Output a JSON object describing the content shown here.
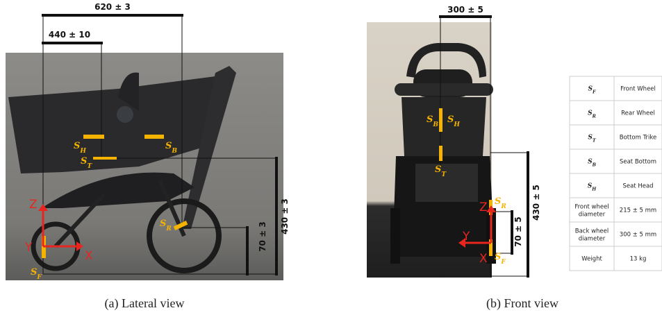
{
  "lateral": {
    "dims": {
      "width_total": "620 ± 3",
      "width_seat": "440 ± 10",
      "height_seat": "430 ± 3",
      "height_axle": "70 ± 3"
    },
    "sensors": {
      "head": {
        "main": "S",
        "sub": "H"
      },
      "bottom": {
        "main": "S",
        "sub": "B"
      },
      "trike": {
        "main": "S",
        "sub": "T"
      },
      "rear": {
        "main": "S",
        "sub": "R"
      },
      "front": {
        "main": "S",
        "sub": "F"
      }
    },
    "axes": {
      "x": "X",
      "y": "Y",
      "z": "Z"
    },
    "caption": "(a) Lateral view"
  },
  "front": {
    "dims": {
      "width": "300 ± 5",
      "height_seat": "430 ± 5",
      "height_axle": "70 ± 5"
    },
    "sensors": {
      "bottom": {
        "main": "S",
        "sub": "B"
      },
      "head": {
        "main": "S",
        "sub": "H"
      },
      "trike": {
        "main": "S",
        "sub": "T"
      },
      "rear": {
        "main": "S",
        "sub": "R"
      },
      "front": {
        "main": "S",
        "sub": "F"
      }
    },
    "axes": {
      "x": "X",
      "y": "Y",
      "z": "Z"
    },
    "caption": "(b) Front view"
  },
  "table": {
    "rows": [
      [
        {
          "main": "S",
          "sub": "F"
        },
        "Front Wheel"
      ],
      [
        {
          "main": "S",
          "sub": "R"
        },
        "Rear Wheel"
      ],
      [
        {
          "main": "S",
          "sub": "T"
        },
        "Bottom Trike"
      ],
      [
        {
          "main": "S",
          "sub": "B"
        },
        "Seat Bottom"
      ],
      [
        {
          "main": "S",
          "sub": "H"
        },
        "Seat Head"
      ],
      [
        "Front wheel diameter",
        "215 ± 5 mm"
      ],
      [
        "Back wheel diameter",
        "300 ± 5 mm"
      ],
      [
        "Weight",
        "13 kg"
      ]
    ]
  }
}
